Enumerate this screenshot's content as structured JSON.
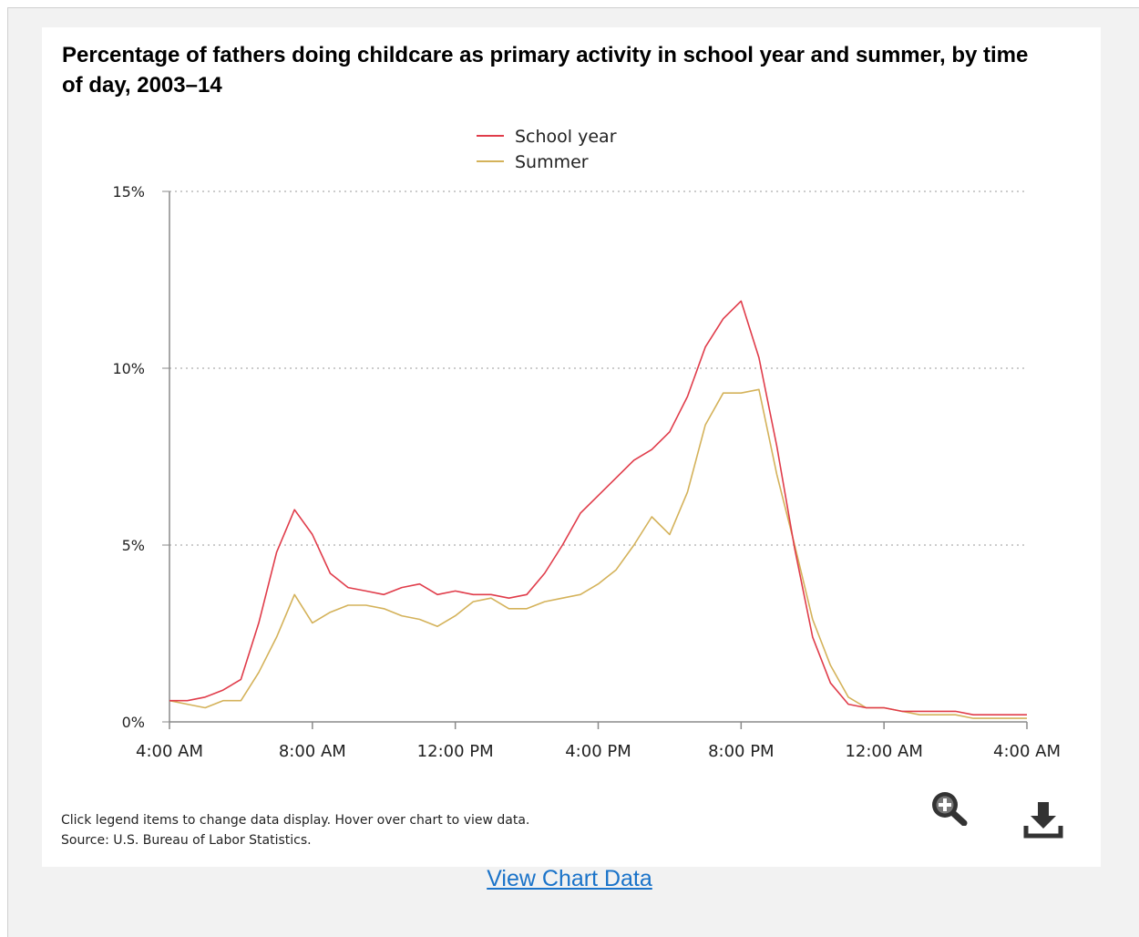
{
  "title": "Percentage of fathers doing childcare as primary activity in school year and summer, by time of day, 2003–14",
  "footnote": {
    "line1": "Click legend items to change data display. Hover over chart to view data.",
    "line2": "Source: U.S. Bureau of Labor Statistics."
  },
  "view_data_link": "View Chart Data",
  "icons": {
    "zoom": "zoom-in-icon",
    "download": "download-icon"
  },
  "colors": {
    "school_year": "#e03c4a",
    "summer": "#d4b25a",
    "link": "#1a73c9",
    "icon": "#333333"
  },
  "chart_data": {
    "type": "line",
    "title": "Percentage of fathers doing childcare as primary activity in school year and summer, by time of day, 2003–14",
    "xlabel": "",
    "ylabel": "",
    "x_ticks": [
      "4:00 AM",
      "8:00 AM",
      "12:00 PM",
      "4:00 PM",
      "8:00 PM",
      "12:00 AM",
      "4:00 AM"
    ],
    "x": [
      "4:00 AM",
      "4:30 AM",
      "5:00 AM",
      "5:30 AM",
      "6:00 AM",
      "6:30 AM",
      "7:00 AM",
      "7:30 AM",
      "8:00 AM",
      "8:30 AM",
      "9:00 AM",
      "9:30 AM",
      "10:00 AM",
      "10:30 AM",
      "11:00 AM",
      "11:30 AM",
      "12:00 PM",
      "12:30 PM",
      "1:00 PM",
      "1:30 PM",
      "2:00 PM",
      "2:30 PM",
      "3:00 PM",
      "3:30 PM",
      "4:00 PM",
      "4:30 PM",
      "5:00 PM",
      "5:30 PM",
      "6:00 PM",
      "6:30 PM",
      "7:00 PM",
      "7:30 PM",
      "8:00 PM",
      "8:30 PM",
      "9:00 PM",
      "9:30 PM",
      "10:00 PM",
      "10:30 PM",
      "11:00 PM",
      "11:30 PM",
      "12:00 AM",
      "12:30 AM",
      "1:00 AM",
      "1:30 AM",
      "2:00 AM",
      "2:30 AM",
      "3:00 AM",
      "3:30 AM",
      "4:00 AM"
    ],
    "y_ticks": [
      "0%",
      "5%",
      "10%",
      "15%"
    ],
    "ylim": [
      0,
      15
    ],
    "grid": "horizontal dotted",
    "legend_position": "top-center",
    "series": [
      {
        "name": "School year",
        "values": [
          0.6,
          0.6,
          0.7,
          0.9,
          1.2,
          2.8,
          4.8,
          6.0,
          5.3,
          4.2,
          3.8,
          3.7,
          3.6,
          3.8,
          3.9,
          3.6,
          3.7,
          3.6,
          3.6,
          3.5,
          3.6,
          4.2,
          5.0,
          5.9,
          6.4,
          6.9,
          7.4,
          7.7,
          8.2,
          9.2,
          10.6,
          11.4,
          11.9,
          10.3,
          7.8,
          4.9,
          2.4,
          1.1,
          0.5,
          0.4,
          0.4,
          0.3,
          0.3,
          0.3,
          0.3,
          0.2,
          0.2,
          0.2,
          0.2
        ]
      },
      {
        "name": "Summer",
        "values": [
          0.6,
          0.5,
          0.4,
          0.6,
          0.6,
          1.4,
          2.4,
          3.6,
          2.8,
          3.1,
          3.3,
          3.3,
          3.2,
          3.0,
          2.9,
          2.7,
          3.0,
          3.4,
          3.5,
          3.2,
          3.2,
          3.4,
          3.5,
          3.6,
          3.9,
          4.3,
          5.0,
          5.8,
          5.3,
          6.5,
          8.4,
          9.3,
          9.3,
          9.4,
          7.0,
          5.0,
          2.9,
          1.6,
          0.7,
          0.4,
          0.4,
          0.3,
          0.2,
          0.2,
          0.2,
          0.1,
          0.1,
          0.1,
          0.1
        ]
      }
    ]
  }
}
